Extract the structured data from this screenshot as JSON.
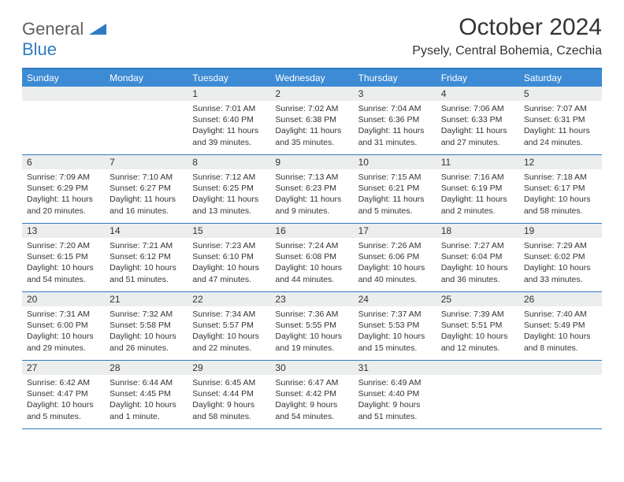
{
  "logo": {
    "text1": "General",
    "text2": "Blue"
  },
  "title": "October 2024",
  "location": "Pysely, Central Bohemia, Czechia",
  "colors": {
    "header_bg": "#3d8bd4",
    "border": "#2f7bc3",
    "daybar_bg": "#eceded",
    "logo_gray": "#5f5f5f",
    "logo_blue": "#2f7bc3"
  },
  "dow": [
    "Sunday",
    "Monday",
    "Tuesday",
    "Wednesday",
    "Thursday",
    "Friday",
    "Saturday"
  ],
  "weeks": [
    [
      null,
      null,
      {
        "n": "1",
        "sr": "Sunrise: 7:01 AM",
        "ss": "Sunset: 6:40 PM",
        "dl": "Daylight: 11 hours and 39 minutes."
      },
      {
        "n": "2",
        "sr": "Sunrise: 7:02 AM",
        "ss": "Sunset: 6:38 PM",
        "dl": "Daylight: 11 hours and 35 minutes."
      },
      {
        "n": "3",
        "sr": "Sunrise: 7:04 AM",
        "ss": "Sunset: 6:36 PM",
        "dl": "Daylight: 11 hours and 31 minutes."
      },
      {
        "n": "4",
        "sr": "Sunrise: 7:06 AM",
        "ss": "Sunset: 6:33 PM",
        "dl": "Daylight: 11 hours and 27 minutes."
      },
      {
        "n": "5",
        "sr": "Sunrise: 7:07 AM",
        "ss": "Sunset: 6:31 PM",
        "dl": "Daylight: 11 hours and 24 minutes."
      }
    ],
    [
      {
        "n": "6",
        "sr": "Sunrise: 7:09 AM",
        "ss": "Sunset: 6:29 PM",
        "dl": "Daylight: 11 hours and 20 minutes."
      },
      {
        "n": "7",
        "sr": "Sunrise: 7:10 AM",
        "ss": "Sunset: 6:27 PM",
        "dl": "Daylight: 11 hours and 16 minutes."
      },
      {
        "n": "8",
        "sr": "Sunrise: 7:12 AM",
        "ss": "Sunset: 6:25 PM",
        "dl": "Daylight: 11 hours and 13 minutes."
      },
      {
        "n": "9",
        "sr": "Sunrise: 7:13 AM",
        "ss": "Sunset: 6:23 PM",
        "dl": "Daylight: 11 hours and 9 minutes."
      },
      {
        "n": "10",
        "sr": "Sunrise: 7:15 AM",
        "ss": "Sunset: 6:21 PM",
        "dl": "Daylight: 11 hours and 5 minutes."
      },
      {
        "n": "11",
        "sr": "Sunrise: 7:16 AM",
        "ss": "Sunset: 6:19 PM",
        "dl": "Daylight: 11 hours and 2 minutes."
      },
      {
        "n": "12",
        "sr": "Sunrise: 7:18 AM",
        "ss": "Sunset: 6:17 PM",
        "dl": "Daylight: 10 hours and 58 minutes."
      }
    ],
    [
      {
        "n": "13",
        "sr": "Sunrise: 7:20 AM",
        "ss": "Sunset: 6:15 PM",
        "dl": "Daylight: 10 hours and 54 minutes."
      },
      {
        "n": "14",
        "sr": "Sunrise: 7:21 AM",
        "ss": "Sunset: 6:12 PM",
        "dl": "Daylight: 10 hours and 51 minutes."
      },
      {
        "n": "15",
        "sr": "Sunrise: 7:23 AM",
        "ss": "Sunset: 6:10 PM",
        "dl": "Daylight: 10 hours and 47 minutes."
      },
      {
        "n": "16",
        "sr": "Sunrise: 7:24 AM",
        "ss": "Sunset: 6:08 PM",
        "dl": "Daylight: 10 hours and 44 minutes."
      },
      {
        "n": "17",
        "sr": "Sunrise: 7:26 AM",
        "ss": "Sunset: 6:06 PM",
        "dl": "Daylight: 10 hours and 40 minutes."
      },
      {
        "n": "18",
        "sr": "Sunrise: 7:27 AM",
        "ss": "Sunset: 6:04 PM",
        "dl": "Daylight: 10 hours and 36 minutes."
      },
      {
        "n": "19",
        "sr": "Sunrise: 7:29 AM",
        "ss": "Sunset: 6:02 PM",
        "dl": "Daylight: 10 hours and 33 minutes."
      }
    ],
    [
      {
        "n": "20",
        "sr": "Sunrise: 7:31 AM",
        "ss": "Sunset: 6:00 PM",
        "dl": "Daylight: 10 hours and 29 minutes."
      },
      {
        "n": "21",
        "sr": "Sunrise: 7:32 AM",
        "ss": "Sunset: 5:58 PM",
        "dl": "Daylight: 10 hours and 26 minutes."
      },
      {
        "n": "22",
        "sr": "Sunrise: 7:34 AM",
        "ss": "Sunset: 5:57 PM",
        "dl": "Daylight: 10 hours and 22 minutes."
      },
      {
        "n": "23",
        "sr": "Sunrise: 7:36 AM",
        "ss": "Sunset: 5:55 PM",
        "dl": "Daylight: 10 hours and 19 minutes."
      },
      {
        "n": "24",
        "sr": "Sunrise: 7:37 AM",
        "ss": "Sunset: 5:53 PM",
        "dl": "Daylight: 10 hours and 15 minutes."
      },
      {
        "n": "25",
        "sr": "Sunrise: 7:39 AM",
        "ss": "Sunset: 5:51 PM",
        "dl": "Daylight: 10 hours and 12 minutes."
      },
      {
        "n": "26",
        "sr": "Sunrise: 7:40 AM",
        "ss": "Sunset: 5:49 PM",
        "dl": "Daylight: 10 hours and 8 minutes."
      }
    ],
    [
      {
        "n": "27",
        "sr": "Sunrise: 6:42 AM",
        "ss": "Sunset: 4:47 PM",
        "dl": "Daylight: 10 hours and 5 minutes."
      },
      {
        "n": "28",
        "sr": "Sunrise: 6:44 AM",
        "ss": "Sunset: 4:45 PM",
        "dl": "Daylight: 10 hours and 1 minute."
      },
      {
        "n": "29",
        "sr": "Sunrise: 6:45 AM",
        "ss": "Sunset: 4:44 PM",
        "dl": "Daylight: 9 hours and 58 minutes."
      },
      {
        "n": "30",
        "sr": "Sunrise: 6:47 AM",
        "ss": "Sunset: 4:42 PM",
        "dl": "Daylight: 9 hours and 54 minutes."
      },
      {
        "n": "31",
        "sr": "Sunrise: 6:49 AM",
        "ss": "Sunset: 4:40 PM",
        "dl": "Daylight: 9 hours and 51 minutes."
      },
      null,
      null
    ]
  ]
}
